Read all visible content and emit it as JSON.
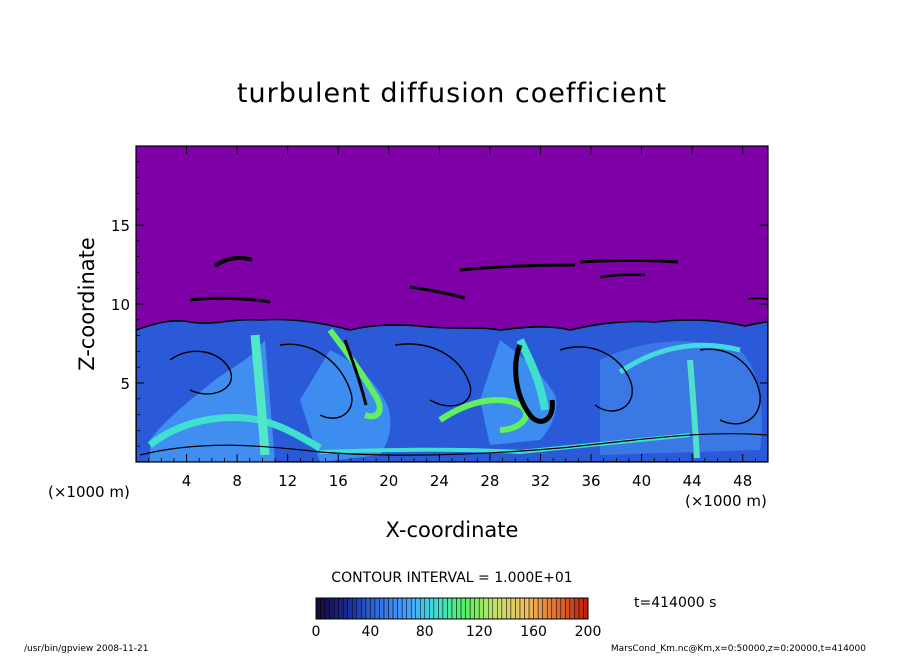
{
  "chart_data": {
    "type": "heatmap",
    "title": "turbulent diffusion coefficient",
    "xlabel": "X-coordinate",
    "ylabel": "Z-coordinate",
    "x_unit_left": "(×1000 m)",
    "x_unit_right": "(×1000 m)",
    "xlim": [
      0,
      50
    ],
    "ylim": [
      0,
      20
    ],
    "x_ticks": [
      4,
      8,
      12,
      16,
      20,
      24,
      28,
      32,
      36,
      40,
      44,
      48
    ],
    "y_ticks": [
      5,
      10,
      15
    ],
    "contour_label": "CONTOUR INTERVAL = 1.000E+01",
    "colorbar": {
      "min": 0,
      "max": 200,
      "ticks": [
        0,
        40,
        80,
        120,
        160,
        200
      ],
      "colors": [
        "#1a0a3a",
        "#1a2a9a",
        "#2f6fe0",
        "#4aa0ff",
        "#40e0d0",
        "#60f060",
        "#c8e070",
        "#f0c060",
        "#e07030",
        "#c02010"
      ]
    },
    "background_color": "#8000a8",
    "time_label": "t=414000 s",
    "footer_left": "/usr/bin/gpview  2008-11-21",
    "footer_right": "MarsCond_Km.nc@Km,x=0:50000,z=0:20000,t=414000"
  }
}
